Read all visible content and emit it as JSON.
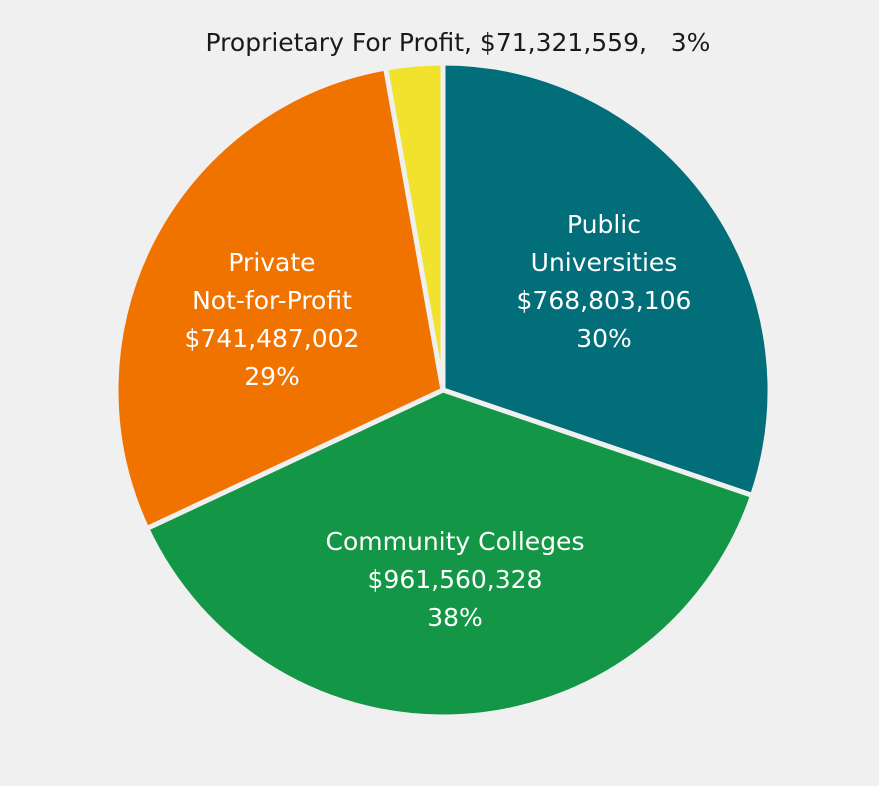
{
  "chart_data": {
    "type": "pie",
    "start_angle_deg": 0,
    "direction": "clockwise",
    "slices": [
      {
        "name_lines": [
          "Public",
          "Universities"
        ],
        "value": 768803106,
        "value_label": "$768,803,106",
        "percent_label": "30%",
        "color": "#016e7a"
      },
      {
        "name_lines": [
          "Community Colleges"
        ],
        "value": 961560328,
        "value_label": "$961,560,328",
        "percent_label": "38%",
        "color": "#139646"
      },
      {
        "name_lines": [
          "Private",
          "Not-for-Profit"
        ],
        "value": 741487002,
        "value_label": "$741,487,002",
        "percent_label": "29%",
        "color": "#f07300"
      },
      {
        "name_lines": [
          "Proprietary For Profit"
        ],
        "value": 71321559,
        "value_label": "$71,321,559",
        "percent_label": "3%",
        "color": "#f0e22d",
        "label_outside_text": "Proprietary For Profit, $71,321,559,   3%"
      }
    ]
  }
}
